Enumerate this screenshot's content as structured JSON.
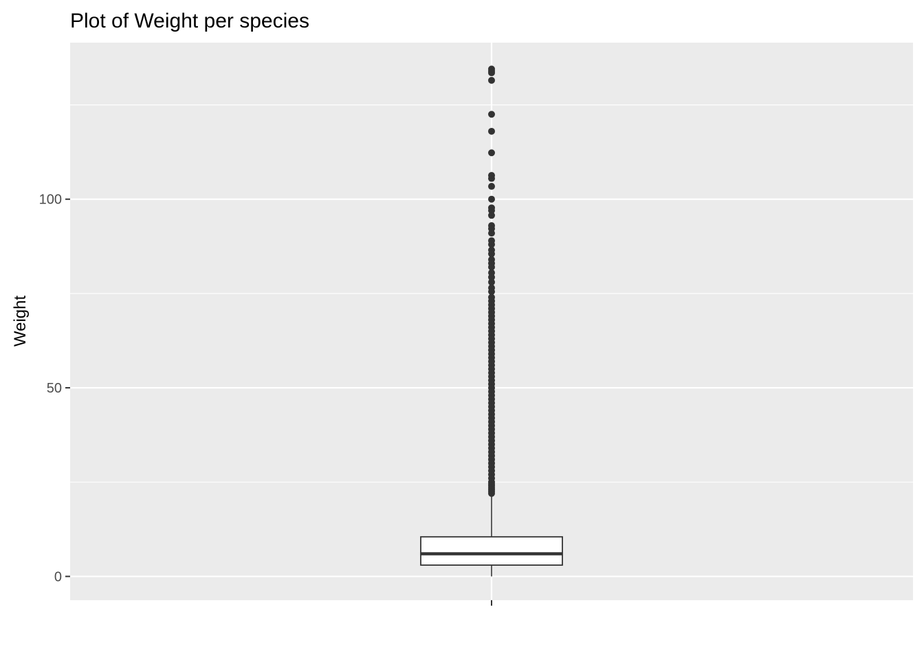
{
  "chart_data": {
    "type": "box",
    "title": "Plot of Weight per species",
    "xlabel": "",
    "ylabel": "Weight",
    "ylim": [
      -6.3,
      141.5
    ],
    "y_ticks": [
      0,
      50,
      100
    ],
    "y_minor": [
      25,
      75,
      125
    ],
    "grid": true,
    "colors": {
      "panel_bg": "#EBEBEB",
      "grid": "#FFFFFF",
      "box_fill": "#FFFFFF",
      "box_line": "#333333",
      "outlier": "#333333"
    },
    "box": {
      "category": "",
      "q1": 3,
      "median": 6,
      "q3": 10.5,
      "whisker_low": 0,
      "whisker_high": 21.5
    },
    "outliers": [
      134.5,
      134,
      133.5,
      131.5,
      122.5,
      118,
      112.3,
      106.3,
      105.5,
      103.4,
      100,
      97.7,
      97,
      95.7,
      93,
      92.2,
      91,
      89,
      88,
      86.5,
      85.5,
      84,
      83,
      82,
      80.5,
      79.3,
      78,
      76.5,
      75.5,
      74,
      73,
      72,
      71,
      70,
      69,
      68,
      67,
      66,
      65,
      64,
      63,
      62,
      61,
      60,
      59,
      58,
      57,
      56,
      55,
      54,
      53,
      52,
      51,
      50,
      49,
      48,
      47,
      46,
      45,
      44,
      43,
      42,
      41,
      40,
      39,
      38,
      37,
      36,
      35,
      34,
      33,
      32,
      31,
      30,
      29,
      28,
      27,
      26,
      25,
      24.5,
      24,
      23.5,
      23,
      22.5,
      22
    ]
  }
}
